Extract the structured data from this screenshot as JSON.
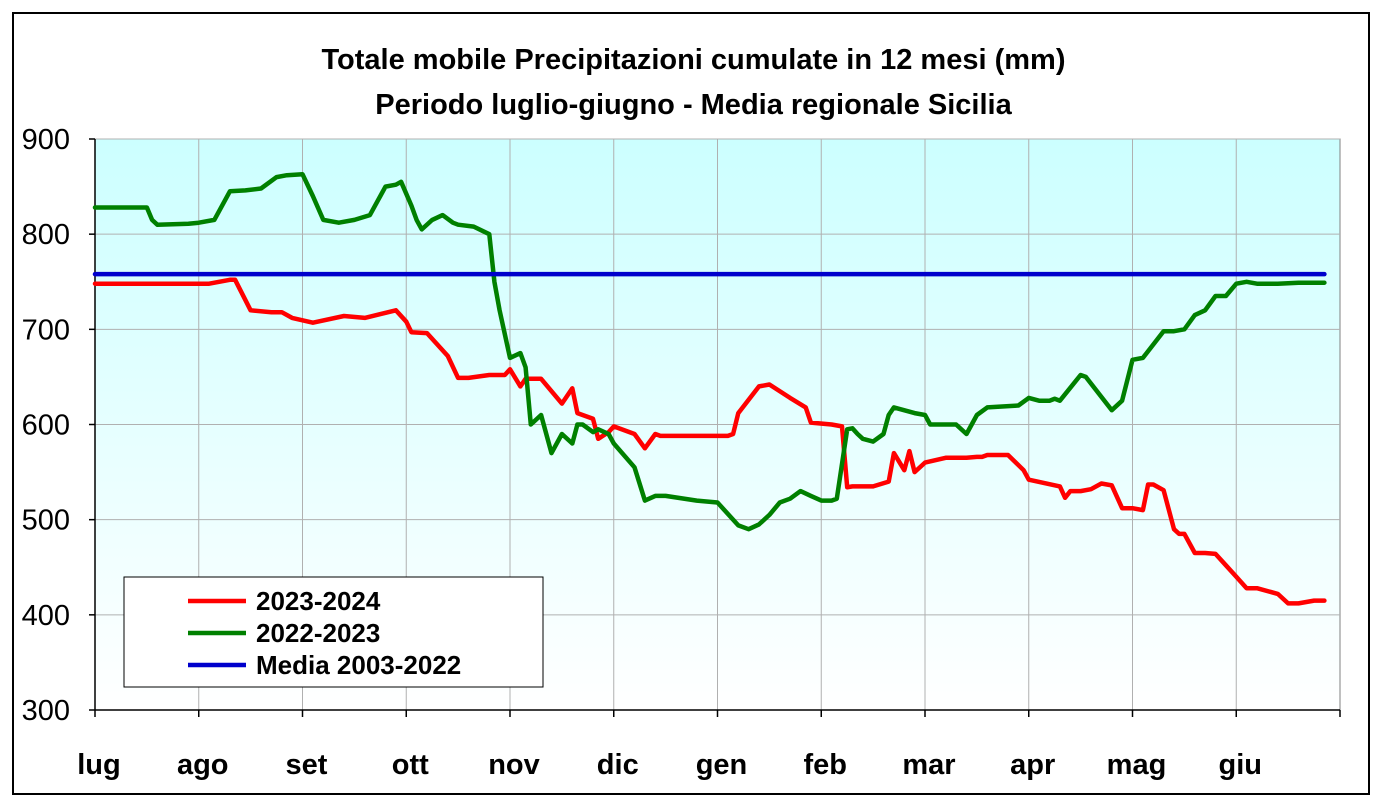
{
  "chart_data": {
    "type": "line",
    "title": "Totale mobile Precipitazioni cumulate in 12 mesi (mm)",
    "subtitle": "Periodo luglio-giugno - Media regionale Sicilia",
    "xlabel": "",
    "ylabel": "",
    "ylim": [
      300,
      900
    ],
    "yticks": [
      "300",
      "400",
      "500",
      "600",
      "700",
      "800",
      "900"
    ],
    "categories": [
      "lug",
      "ago",
      "set",
      "ott",
      "nov",
      "dic",
      "gen",
      "feb",
      "mar",
      "apr",
      "mag",
      "giu"
    ],
    "grid": true,
    "legend_position": "bottom-left",
    "plot_background": {
      "top": "#ccffff",
      "bottom": "#ffffff"
    },
    "series": [
      {
        "name": "2023-2024",
        "color": "#ff0000",
        "x": [
          0,
          0.5,
          1.0,
          1.1,
          1.3,
          1.35,
          1.5,
          1.7,
          1.8,
          1.9,
          2.1,
          2.4,
          2.6,
          2.9,
          3.0,
          3.05,
          3.2,
          3.4,
          3.5,
          3.6,
          3.8,
          3.95,
          4.0,
          4.1,
          4.15,
          4.3,
          4.5,
          4.6,
          4.65,
          4.8,
          4.85,
          4.95,
          5.0,
          5.2,
          5.3,
          5.4,
          5.45,
          5.7,
          6.0,
          6.1,
          6.15,
          6.2,
          6.4,
          6.5,
          6.7,
          6.85,
          6.9,
          7.1,
          7.2,
          7.25,
          7.3,
          7.5,
          7.65,
          7.7,
          7.8,
          7.85,
          7.9,
          8.0,
          8.2,
          8.4,
          8.5,
          8.55,
          8.6,
          8.8,
          8.95,
          9.0,
          9.3,
          9.35,
          9.4,
          9.5,
          9.6,
          9.7,
          9.8,
          9.9,
          10.0,
          10.1,
          10.15,
          10.2,
          10.3,
          10.4,
          10.45,
          10.5,
          10.6,
          10.7,
          10.8,
          10.9,
          11.0,
          11.1,
          11.2,
          11.4,
          11.5,
          11.55,
          11.6,
          11.75,
          11.85
        ],
        "values": [
          748,
          748,
          748,
          748,
          752,
          752,
          720,
          718,
          718,
          712,
          707,
          714,
          712,
          720,
          708,
          697,
          696,
          672,
          649,
          649,
          652,
          652,
          658,
          640,
          648,
          648,
          622,
          638,
          612,
          606,
          585,
          592,
          598,
          590,
          575,
          590,
          588,
          588,
          588,
          588,
          590,
          612,
          640,
          642,
          628,
          618,
          602,
          600,
          598,
          534,
          535,
          535,
          540,
          570,
          552,
          572,
          550,
          560,
          565,
          565,
          566,
          566,
          568,
          568,
          552,
          542,
          535,
          523,
          530,
          530,
          532,
          538,
          536,
          512,
          512,
          510,
          537,
          537,
          531,
          490,
          485,
          485,
          465,
          465,
          464,
          452,
          440,
          428,
          428,
          422,
          412,
          412,
          412,
          415,
          415
        ]
      },
      {
        "name": "2022-2023",
        "color": "#008000",
        "x": [
          0,
          0.5,
          0.55,
          0.6,
          0.9,
          1.0,
          1.15,
          1.3,
          1.45,
          1.6,
          1.75,
          1.85,
          2.0,
          2.1,
          2.2,
          2.35,
          2.5,
          2.65,
          2.8,
          2.9,
          2.95,
          3.05,
          3.1,
          3.15,
          3.25,
          3.35,
          3.45,
          3.5,
          3.65,
          3.8,
          3.85,
          3.9,
          4.0,
          4.1,
          4.15,
          4.2,
          4.3,
          4.4,
          4.5,
          4.6,
          4.65,
          4.7,
          4.8,
          4.85,
          4.95,
          5.0,
          5.2,
          5.3,
          5.4,
          5.5,
          5.8,
          6.0,
          6.2,
          6.3,
          6.4,
          6.5,
          6.6,
          6.7,
          6.8,
          6.9,
          7.0,
          7.1,
          7.15,
          7.25,
          7.3,
          7.35,
          7.4,
          7.5,
          7.6,
          7.65,
          7.7,
          7.9,
          8.0,
          8.05,
          8.2,
          8.3,
          8.4,
          8.5,
          8.6,
          8.9,
          9.0,
          9.1,
          9.2,
          9.25,
          9.3,
          9.5,
          9.55,
          9.8,
          9.9,
          10.0,
          10.1,
          10.3,
          10.4,
          10.5,
          10.6,
          10.7,
          10.8,
          10.9,
          11.0,
          11.1,
          11.2,
          11.4,
          11.6,
          11.85
        ],
        "values": [
          828,
          828,
          815,
          810,
          811,
          812,
          815,
          845,
          846,
          848,
          860,
          862,
          863,
          840,
          815,
          812,
          815,
          820,
          850,
          852,
          855,
          830,
          815,
          805,
          815,
          820,
          812,
          810,
          808,
          800,
          750,
          720,
          670,
          675,
          660,
          600,
          610,
          570,
          590,
          580,
          600,
          600,
          592,
          595,
          590,
          580,
          555,
          520,
          525,
          525,
          520,
          518,
          494,
          490,
          495,
          505,
          518,
          522,
          530,
          525,
          520,
          520,
          522,
          595,
          596,
          590,
          585,
          582,
          590,
          610,
          618,
          612,
          610,
          600,
          600,
          600,
          590,
          610,
          618,
          620,
          628,
          625,
          625,
          627,
          625,
          652,
          650,
          615,
          625,
          668,
          670,
          698,
          698,
          700,
          715,
          720,
          735,
          735,
          748,
          750,
          748,
          748,
          749,
          749
        ]
      },
      {
        "name": "Media 2003-2022",
        "color": "#0000cc",
        "x": [
          0,
          11.85
        ],
        "values": [
          758,
          758
        ]
      }
    ]
  }
}
